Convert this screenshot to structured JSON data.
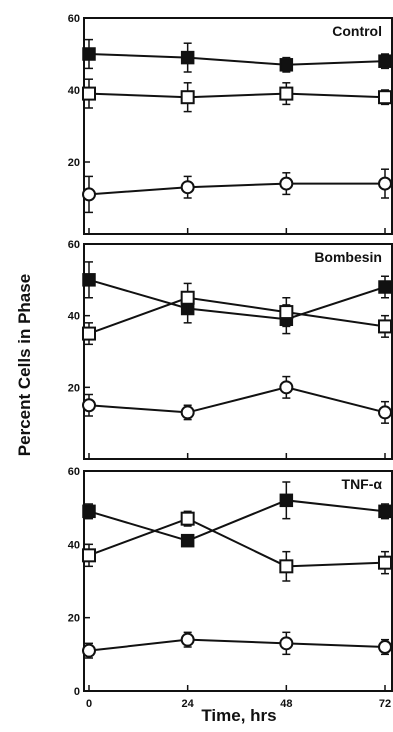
{
  "chart_data": {
    "type": "line",
    "ylabel": "Percent Cells in Phase",
    "xlabel": "Time, hrs",
    "x": [
      0,
      24,
      48,
      72
    ],
    "x_ticks": [
      "0",
      "24",
      "48",
      "72"
    ],
    "xlim": [
      0,
      72
    ],
    "ylim": [
      0,
      60
    ],
    "y_ticks": [
      "0",
      "20",
      "40",
      "60"
    ],
    "grid": false,
    "panels": [
      {
        "title": "Control",
        "series": [
          {
            "marker": "filled-square",
            "values": [
              50,
              49,
              47,
              48
            ],
            "errors": [
              4,
              4,
              2,
              2
            ]
          },
          {
            "marker": "open-square",
            "values": [
              39,
              38,
              39,
              38
            ],
            "errors": [
              4,
              4,
              3,
              2
            ]
          },
          {
            "marker": "open-circle",
            "values": [
              11,
              13,
              14,
              14
            ],
            "errors": [
              5,
              3,
              3,
              4
            ]
          }
        ]
      },
      {
        "title": "Bombesin",
        "series": [
          {
            "marker": "filled-square",
            "values": [
              50,
              42,
              39,
              48
            ],
            "errors": [
              5,
              4,
              4,
              3
            ]
          },
          {
            "marker": "open-square",
            "values": [
              35,
              45,
              41,
              37
            ],
            "errors": [
              3,
              4,
              4,
              3
            ]
          },
          {
            "marker": "open-circle",
            "values": [
              15,
              13,
              20,
              13
            ],
            "errors": [
              3,
              2,
              3,
              3
            ]
          }
        ]
      },
      {
        "title": "TNF-α",
        "series": [
          {
            "marker": "filled-square",
            "values": [
              49,
              41,
              52,
              49
            ],
            "errors": [
              2,
              1,
              5,
              2
            ]
          },
          {
            "marker": "open-square",
            "values": [
              37,
              47,
              34,
              35
            ],
            "errors": [
              3,
              2,
              4,
              3
            ]
          },
          {
            "marker": "open-circle",
            "values": [
              11,
              14,
              13,
              12
            ],
            "errors": [
              2,
              2,
              3,
              2
            ]
          }
        ]
      }
    ]
  }
}
